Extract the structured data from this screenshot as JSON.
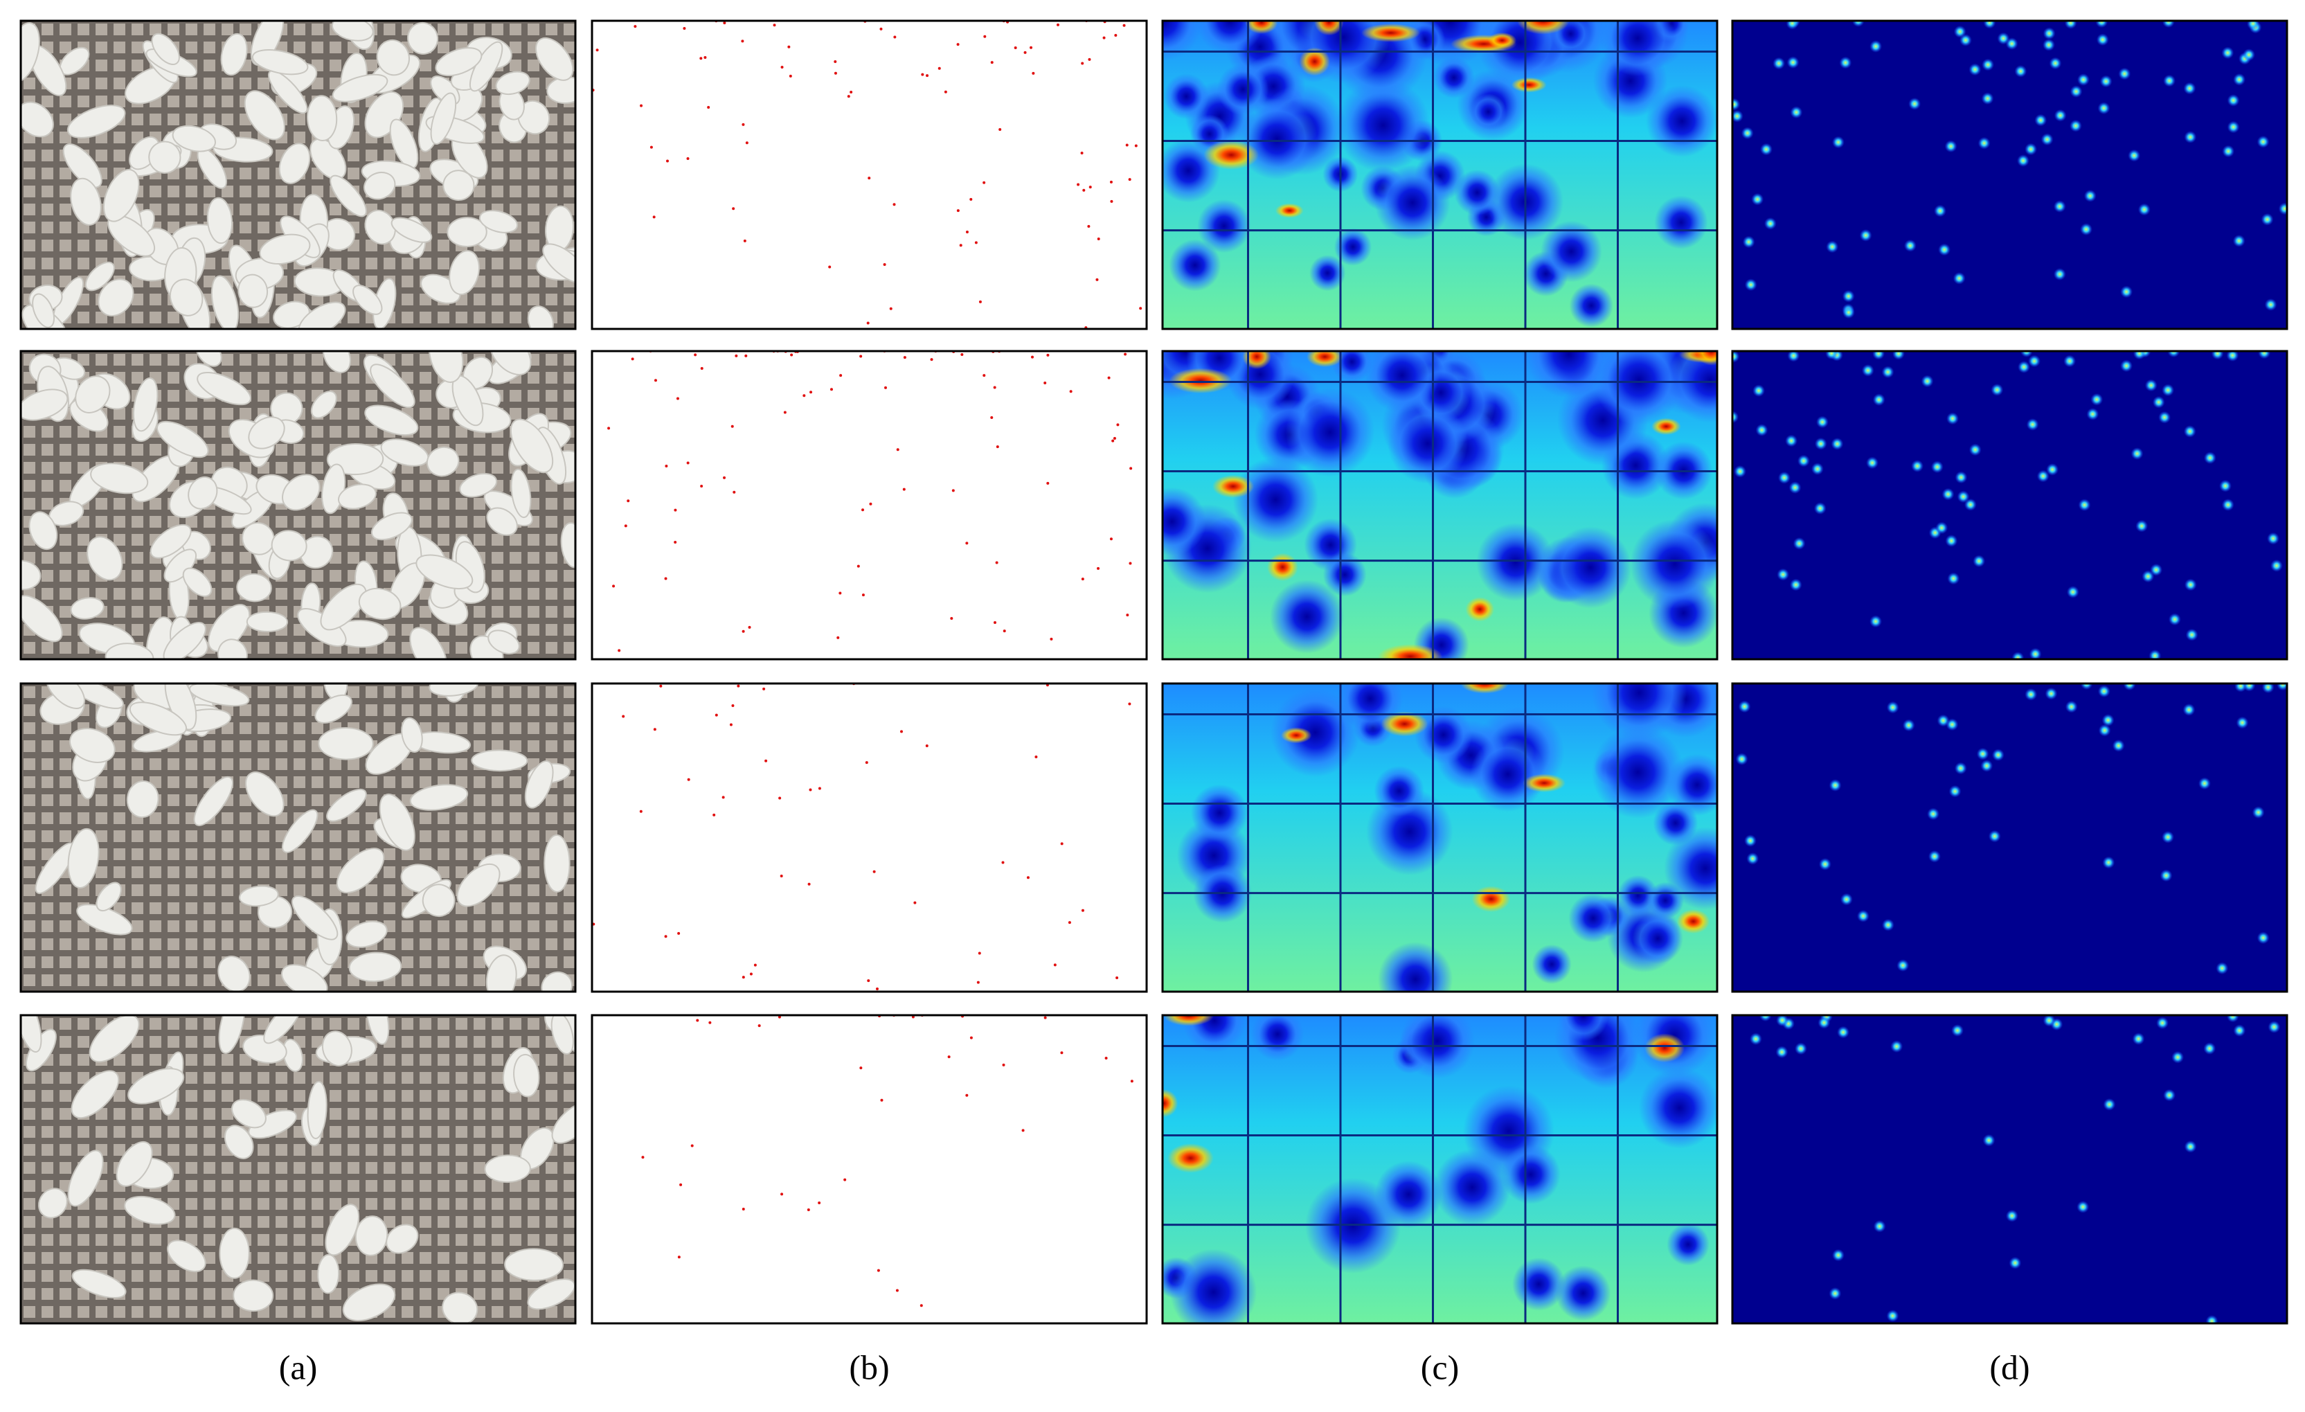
{
  "panel_labels": [
    "(a)",
    "(b)",
    "(c)",
    "(d)"
  ]
}
